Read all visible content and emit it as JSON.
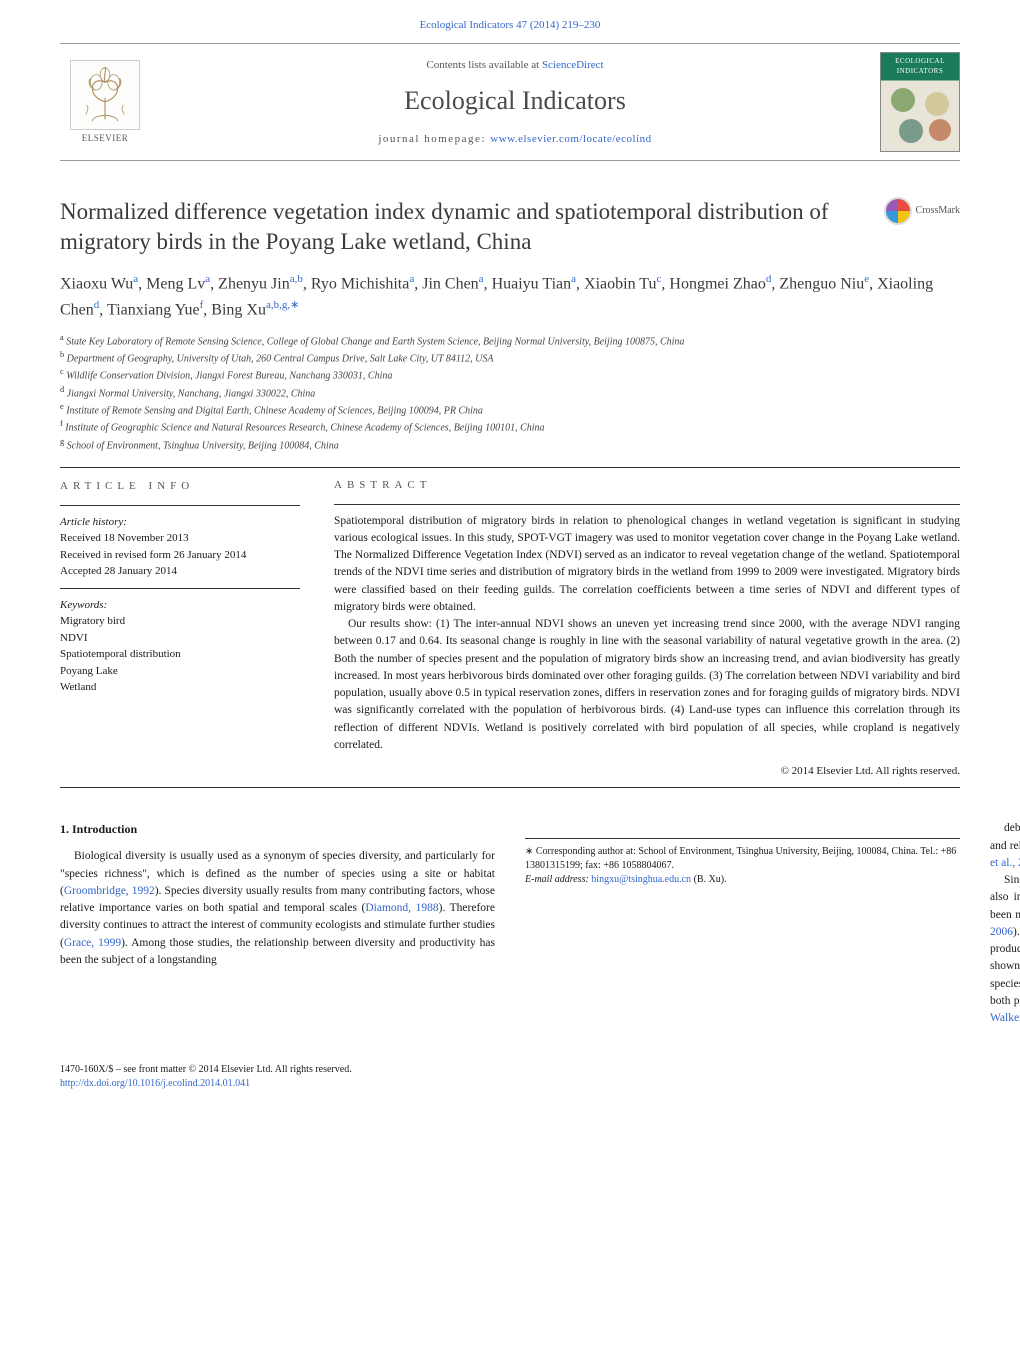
{
  "header": {
    "citation": "Ecological Indicators 47 (2014) 219–230",
    "contents_prefix": "Contents lists available at ",
    "contents_link": "ScienceDirect",
    "journal_name": "Ecological Indicators",
    "homepage_label": "journal homepage: ",
    "homepage_url": "www.elsevier.com/locate/ecolind",
    "publisher_name": "ELSEVIER",
    "cover_title": "ECOLOGICAL INDICATORS"
  },
  "article": {
    "title": "Normalized difference vegetation index dynamic and spatiotemporal distribution of migratory birds in the Poyang Lake wetland, China",
    "crossmark_label": "CrossMark",
    "authors_html": "Xiaoxu Wu<sup>a</sup>, Meng Lv<sup>a</sup>, Zhenyu Jin<sup>a,b</sup>, Ryo Michishita<sup>a</sup>, Jin Chen<sup>a</sup>, Huaiyu Tian<sup>a</sup>, Xiaobin Tu<sup>c</sup>, Hongmei Zhao<sup>d</sup>, Zhenguo Niu<sup>e</sup>, Xiaoling Chen<sup>d</sup>, Tianxiang Yue<sup>f</sup>, Bing Xu<sup>a,b,g,∗</sup>",
    "affiliations": [
      "a State Key Laboratory of Remote Sensing Science, College of Global Change and Earth System Science, Beijing Normal University, Beijing 100875, China",
      "b Department of Geography, University of Utah, 260 Central Campus Drive, Salt Lake City, UT 84112, USA",
      "c Wildlife Conservation Division, Jiangxi Forest Bureau, Nanchang 330031, China",
      "d Jiangxi Normal University, Nanchang, Jiangxi 330022, China",
      "e Institute of Remote Sensing and Digital Earth, Chinese Academy of Sciences, Beijing 100094, PR China",
      "f Institute of Geographic Science and Natural Resources Research, Chinese Academy of Sciences, Beijing 100101, China",
      "g School of Environment, Tsinghua University, Beijing 100084, China"
    ]
  },
  "info": {
    "heading": "ARTICLE INFO",
    "history_label": "Article history:",
    "history": [
      "Received 18 November 2013",
      "Received in revised form 26 January 2014",
      "Accepted 28 January 2014"
    ],
    "keywords_label": "Keywords:",
    "keywords": [
      "Migratory bird",
      "NDVI",
      "Spatiotemporal distribution",
      "Poyang Lake",
      "Wetland"
    ]
  },
  "abstract": {
    "heading": "ABSTRACT",
    "paragraphs": [
      "Spatiotemporal distribution of migratory birds in relation to phenological changes in wetland vegetation is significant in studying various ecological issues. In this study, SPOT-VGT imagery was used to monitor vegetation cover change in the Poyang Lake wetland. The Normalized Difference Vegetation Index (NDVI) served as an indicator to reveal vegetation change of the wetland. Spatiotemporal trends of the NDVI time series and distribution of migratory birds in the wetland from 1999 to 2009 were investigated. Migratory birds were classified based on their feeding guilds. The correlation coefficients between a time series of NDVI and different types of migratory birds were obtained.",
      "Our results show: (1) The inter-annual NDVI shows an uneven yet increasing trend since 2000, with the average NDVI ranging between 0.17 and 0.64. Its seasonal change is roughly in line with the seasonal variability of natural vegetative growth in the area. (2) Both the number of species present and the population of migratory birds show an increasing trend, and avian biodiversity has greatly increased. In most years herbivorous birds dominated over other foraging guilds. (3) The correlation between NDVI variability and bird population, usually above 0.5 in typical reservation zones, differs in reservation zones and for foraging guilds of migratory birds. NDVI was significantly correlated with the population of herbivorous birds. (4) Land-use types can influence this correlation through its reflection of different NDVIs. Wetland is positively correlated with bird population of all species, while cropland is negatively correlated."
    ],
    "copyright": "© 2014 Elsevier Ltd. All rights reserved."
  },
  "body": {
    "section_heading": "1. Introduction",
    "col1_html": "Biological diversity is usually used as a synonym of species diversity, and particularly for \"species richness\", which is defined as the number of species using a site or habitat (<a href='#'>Groombridge, 1992</a>). Species diversity usually results from many contributing factors, whose relative importance varies on both spatial and temporal scales (<a href='#'>Diamond, 1988</a>). Therefore diversity continues to attract the interest of community ecologists and stimulate further studies (<a href='#'>Grace, 1999</a>). Among those studies, the relationship between diversity and productivity has been the subject of a longstanding",
    "col2a_html": "debate in ecology. The productivity hypothesis predicts that when resources are abundant and reliable, species become more specialized, allowing more species per unit area (<a href='#'>Skidmore et al., 2003</a>).",
    "col2b_html": "Since the quantity of consumer individuals increases with productivity, species diversity also increases with productivity (<a href='#'>Diamond, 1988</a>). Productivity and related variables have been mapped over large areas using remote sensing (<a href='#'>Stoms and Estes, 1993; Xu et al., 2004, 2006</a>). The Normalized Difference Vegetation Index (NDVI) has been related to net primary productivity (NPP) at small spatial scales (<a href='#'>Box et al., 1989</a>). If a strong relationship can be shown between the NDVI and NPP, then the NDVI should have a direct relationship with species richness. Actually, in the last decade the NDVI has been related to the distribution of both plant and animal species diversity (<a href='#'>Skidmore et al., 2003; Xu et al., 2003</a>). For example, <a href='#'>Walker et al. (1992)</a> correlated plant species richness to an aggregated NDVI in California,"
  },
  "corresponding": {
    "text": "∗ Corresponding author at: School of Environment, Tsinghua University, Beijing, 100084, China. Tel.: +86 13801315199; fax: +86 1058804067.",
    "email_label": "E-mail address:",
    "email": "bingxu@tsinghua.edu.cn",
    "email_suffix": "(B. Xu)."
  },
  "footer": {
    "line1": "1470-160X/$ – see front matter © 2014 Elsevier Ltd. All rights reserved.",
    "doi": "http://dx.doi.org/10.1016/j.ecolind.2014.01.041"
  },
  "colors": {
    "link": "#3366cc",
    "text": "#1a1a1a",
    "rule": "#333333",
    "cover_green": "#1a7a5a"
  }
}
